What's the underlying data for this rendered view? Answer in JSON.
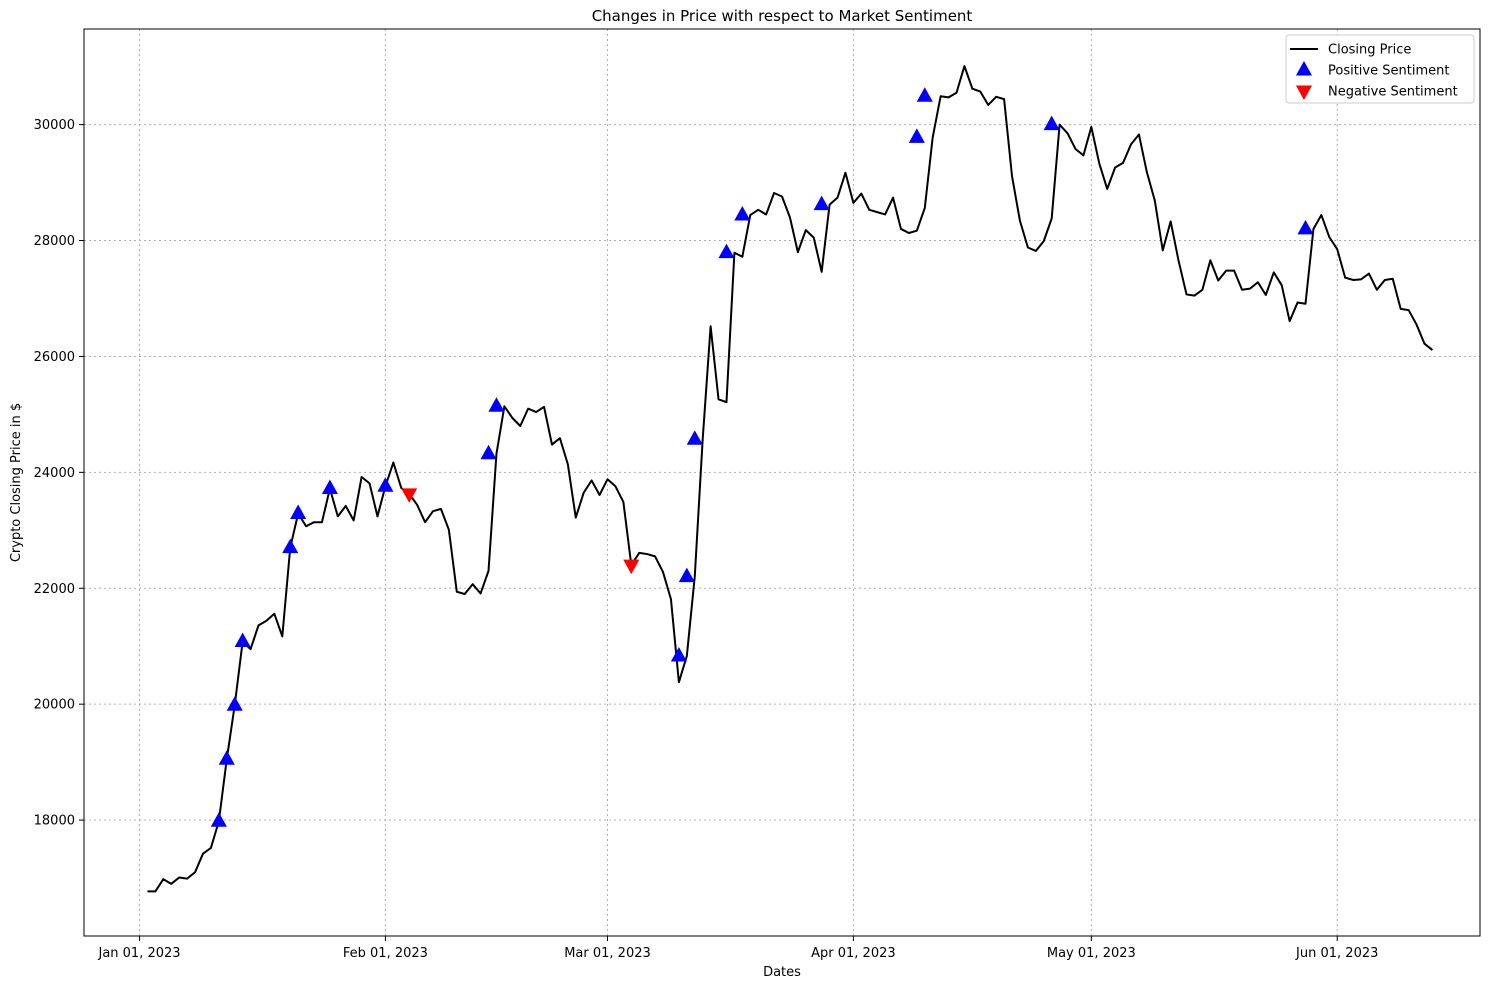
{
  "chart_data": {
    "type": "line",
    "title": "Changes in Price with respect to Market Sentiment",
    "xlabel": "Dates",
    "ylabel": "Crypto Closing Price in $",
    "xlim": [
      "2022-12-25",
      "2023-06-19"
    ],
    "ylim": [
      16000,
      31650
    ],
    "grid": true,
    "legend_position": "top-right",
    "x_ticks": [
      {
        "date": "2023-01-01",
        "label": "Jan 01, 2023"
      },
      {
        "date": "2023-02-01",
        "label": "Feb 01, 2023"
      },
      {
        "date": "2023-03-01",
        "label": "Mar 01, 2023"
      },
      {
        "date": "2023-04-01",
        "label": "Apr 01, 2023"
      },
      {
        "date": "2023-05-01",
        "label": "May 01, 2023"
      },
      {
        "date": "2023-06-01",
        "label": "Jun 01, 2023"
      }
    ],
    "y_ticks": [
      {
        "value": 18000,
        "label": "18000"
      },
      {
        "value": 20000,
        "label": "20000"
      },
      {
        "value": 22000,
        "label": "22000"
      },
      {
        "value": 24000,
        "label": "24000"
      },
      {
        "value": 26000,
        "label": "26000"
      },
      {
        "value": 28000,
        "label": "28000"
      },
      {
        "value": 30000,
        "label": "30000"
      }
    ],
    "series": [
      {
        "name": "Closing Price",
        "color": "#000000",
        "start_date": "2023-01-02",
        "values": [
          16770,
          16770,
          16980,
          16900,
          17010,
          16990,
          17100,
          17420,
          17520,
          17980,
          19050,
          19980,
          21080,
          20950,
          21360,
          21440,
          21560,
          21170,
          22700,
          23290,
          23070,
          23140,
          23140,
          23720,
          23240,
          23420,
          23170,
          23920,
          23810,
          23240,
          23760,
          24170,
          23730,
          23630,
          23440,
          23140,
          23330,
          23370,
          23010,
          21940,
          21900,
          22070,
          21910,
          22300,
          24320,
          25140,
          24940,
          24800,
          25100,
          25040,
          25130,
          24480,
          24590,
          24140,
          23220,
          23650,
          23860,
          23610,
          23880,
          23760,
          23490,
          22400,
          22610,
          22590,
          22550,
          22280,
          21810,
          20380,
          20830,
          22200,
          24570,
          26520,
          25260,
          25210,
          27790,
          27720,
          28440,
          28530,
          28450,
          28820,
          28760,
          28400,
          27800,
          28180,
          28050,
          27460,
          28620,
          28740,
          29170,
          28650,
          28810,
          28530,
          28490,
          28450,
          28740,
          28200,
          28130,
          28170,
          28560,
          29780,
          30490,
          30470,
          30550,
          31010,
          30620,
          30570,
          30340,
          30480,
          30440,
          29110,
          28340,
          27880,
          27820,
          27990,
          28380,
          30000,
          29850,
          29580,
          29470,
          29960,
          29330,
          28890,
          29260,
          29340,
          29660,
          29830,
          29180,
          28690,
          27830,
          28330,
          27650,
          27070,
          27050,
          27150,
          27660,
          27310,
          27480,
          27480,
          27150,
          27170,
          27280,
          27060,
          27450,
          27230,
          26610,
          26930,
          26910,
          28200,
          28440,
          28060,
          27850,
          27360,
          27320,
          27330,
          27430,
          27150,
          27320,
          27340,
          26820,
          26800,
          26550,
          26220,
          26110
        ]
      },
      {
        "name": "Positive Sentiment",
        "color": "#0000ff",
        "marker": "triangle-up",
        "points": [
          {
            "date": "2023-01-11",
            "value": 17980
          },
          {
            "date": "2023-01-12",
            "value": 19050
          },
          {
            "date": "2023-01-13",
            "value": 19980
          },
          {
            "date": "2023-01-14",
            "value": 21080
          },
          {
            "date": "2023-01-20",
            "value": 22700
          },
          {
            "date": "2023-01-21",
            "value": 23290
          },
          {
            "date": "2023-01-25",
            "value": 23720
          },
          {
            "date": "2023-02-01",
            "value": 23760
          },
          {
            "date": "2023-02-14",
            "value": 24320
          },
          {
            "date": "2023-02-15",
            "value": 25140
          },
          {
            "date": "2023-03-10",
            "value": 20830
          },
          {
            "date": "2023-03-11",
            "value": 22200
          },
          {
            "date": "2023-03-12",
            "value": 24570
          },
          {
            "date": "2023-03-16",
            "value": 27790
          },
          {
            "date": "2023-03-18",
            "value": 28440
          },
          {
            "date": "2023-03-28",
            "value": 28620
          },
          {
            "date": "2023-04-09",
            "value": 29780
          },
          {
            "date": "2023-04-10",
            "value": 30490
          },
          {
            "date": "2023-04-26",
            "value": 30000
          },
          {
            "date": "2023-05-28",
            "value": 28200
          }
        ]
      },
      {
        "name": "Negative Sentiment",
        "color": "#ff0000",
        "marker": "triangle-down",
        "points": [
          {
            "date": "2023-02-04",
            "value": 23630
          },
          {
            "date": "2023-03-04",
            "value": 22400
          }
        ]
      }
    ]
  }
}
